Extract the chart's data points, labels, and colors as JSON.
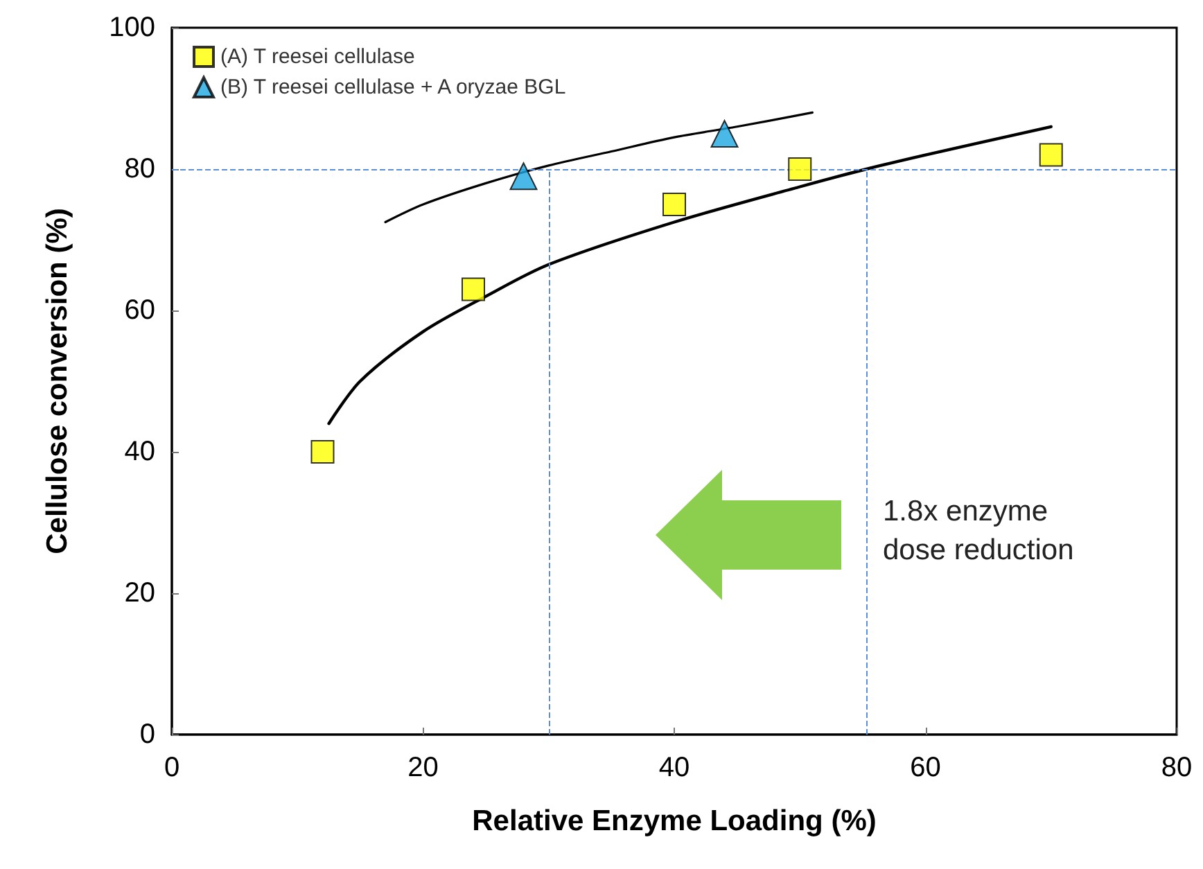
{
  "chart_data": {
    "type": "scatter",
    "xlabel": "Relative Enzyme Loading (%)",
    "ylabel": "Cellulose conversion (%)",
    "xlim": [
      0,
      80
    ],
    "xticks": [
      0,
      20,
      40,
      60,
      80
    ],
    "ylim": [
      0,
      100
    ],
    "yticks": [
      0,
      20,
      40,
      60,
      80,
      100
    ],
    "grid": false,
    "legend": "top left",
    "series": [
      {
        "name": "(A) T reesei cellulase",
        "marker": "square",
        "color": "#ffff00",
        "x": [
          12,
          24,
          40,
          50,
          70
        ],
        "values": [
          40,
          63,
          75,
          80,
          82
        ]
      },
      {
        "name": "(B) T reesei cellulase + A oryzae BGL",
        "marker": "triangle",
        "color": "#1ea7e1",
        "x": [
          28,
          44
        ],
        "values": [
          79,
          85
        ]
      },
      {
        "type": "line",
        "marker": "none",
        "color": "#000000",
        "x": [
          12.5,
          15,
          20,
          25,
          30,
          40,
          50,
          55.3,
          60,
          70
        ],
        "values": [
          44,
          50,
          57,
          62,
          66.5,
          72.5,
          77.5,
          80,
          82,
          86
        ]
      },
      {
        "type": "line",
        "marker": "none",
        "color": "#000000",
        "x": [
          17,
          20,
          25,
          30,
          35,
          40,
          45,
          51
        ],
        "values": [
          72.5,
          75,
          78,
          80.5,
          82.5,
          84.5,
          86,
          88
        ]
      }
    ],
    "ref_lines": [
      {
        "axis": "y",
        "value": 80,
        "color": "#5b8fd6",
        "line_style": "dashed"
      },
      {
        "axis": "x",
        "value": 30,
        "color": "#5b8fd6",
        "line_style": "dashed"
      },
      {
        "axis": "x",
        "value": 55.3,
        "color": "#5b8fd6",
        "line_style": "dashed"
      }
    ],
    "annotations": [
      "1.8x enzyme dose reduction"
    ]
  }
}
